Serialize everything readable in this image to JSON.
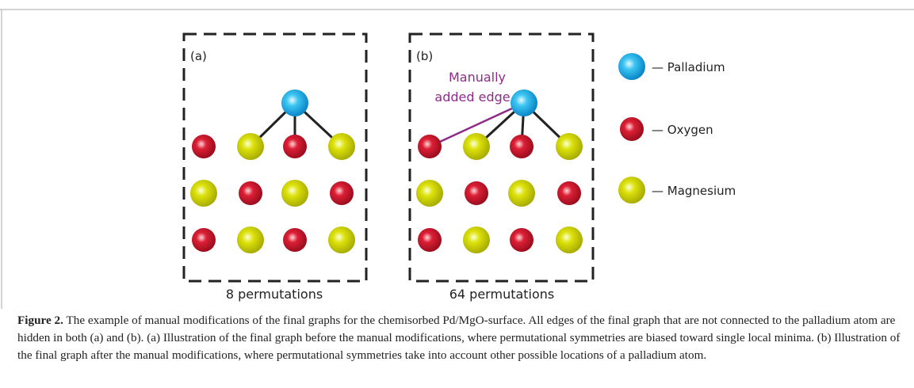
{
  "panels": [
    {
      "label": "(a)",
      "footer": "8 permutations"
    },
    {
      "label": "(b)",
      "footer": "64 permutations",
      "annotation": [
        "Manually",
        "added edge"
      ]
    }
  ],
  "legend": [
    {
      "label": "— Palladium"
    },
    {
      "label": "— Oxygen"
    },
    {
      "label": "— Magnesium"
    }
  ],
  "caption": {
    "label": "Figure 2.",
    "text": " The example of manual modifications of the final graphs for the chemisorbed Pd/MgO-surface. All edges of the final graph that are not connected to the palladium atom are hidden in both (a) and (b). (a) Illustration of the final graph before the manual modifications, where permutational symmetries are biased toward single local minima. (b) Illustration of the final graph after the manual modifications, where permutational symmetries take into account other possible locations of a palladium atom."
  }
}
